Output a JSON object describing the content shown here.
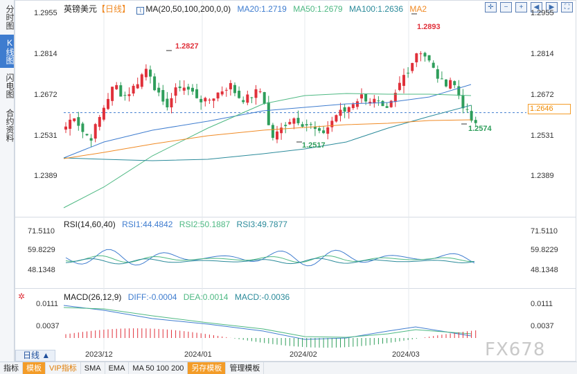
{
  "sidebar": {
    "tabs": [
      {
        "label": "分时图",
        "active": false
      },
      {
        "label": "K线图",
        "active": true
      },
      {
        "label": "闪电图",
        "active": false
      },
      {
        "label": "合约资料",
        "active": false
      }
    ]
  },
  "main_chart": {
    "symbol": "英镑美元",
    "period_tag": "【日线】",
    "indicator": "MA(20,50,100,200,0,0)",
    "ma20": "MA20:1.2719",
    "ma50": "MA50:1.2679",
    "ma100": "MA100:1.2636",
    "ma2": "MA2",
    "current_price": "1.2646",
    "high_label": "1.2893",
    "high2_label": "1.2827",
    "low_label": "1.2517",
    "low2_label": "1.2574",
    "y_ticks": [
      "1.2955",
      "1.2814",
      "1.2672",
      "1.2531",
      "1.2389"
    ]
  },
  "rsi_panel": {
    "title": "RSI(14,60,40)",
    "rsi1": "RSI1:44.4842",
    "rsi2": "RSI2:50.1887",
    "rsi3": "RSI3:49.7877",
    "y_ticks": [
      "71.5110",
      "59.8229",
      "48.1348"
    ]
  },
  "macd_panel": {
    "title": "MACD(26,12,9)",
    "diff": "DIFF:-0.0004",
    "dea": "DEA:0.0014",
    "macd": "MACD:-0.0036",
    "y_ticks": [
      "0.0111",
      "0.0037"
    ]
  },
  "x_axis": {
    "labels": [
      "2023/12",
      "2024/01",
      "2024/02",
      "2024/03"
    ]
  },
  "period_selector": "日线 ▲",
  "bottom_bar": {
    "items": [
      "指标",
      "模板",
      "VIP指标",
      "SMA",
      "EMA",
      "MA 50 100 200",
      "另存模板",
      "管理模板"
    ]
  },
  "watermark": "FX678",
  "colors": {
    "up": "#e0303a",
    "down": "#2f9e5b",
    "ma20": "#3e7ccf",
    "ma50": "#4db882",
    "ma100": "#2a8a9a",
    "ma2": "#f08a24",
    "price_line": "#3e7ccf"
  },
  "chart_data": {
    "type": "candlestick",
    "title": "英镑美元【日线】",
    "ylim": [
      1.233,
      1.299
    ],
    "x": [
      "2023/12",
      "2024/01",
      "2024/02",
      "2024/03"
    ],
    "series": [
      {
        "name": "MA20",
        "last": 1.2719
      },
      {
        "name": "MA50",
        "last": 1.2679
      },
      {
        "name": "MA100",
        "last": 1.2636
      }
    ],
    "annotations": [
      {
        "label": "1.2827"
      },
      {
        "label": "1.2893"
      },
      {
        "label": "1.2517"
      },
      {
        "label": "1.2574"
      }
    ]
  }
}
